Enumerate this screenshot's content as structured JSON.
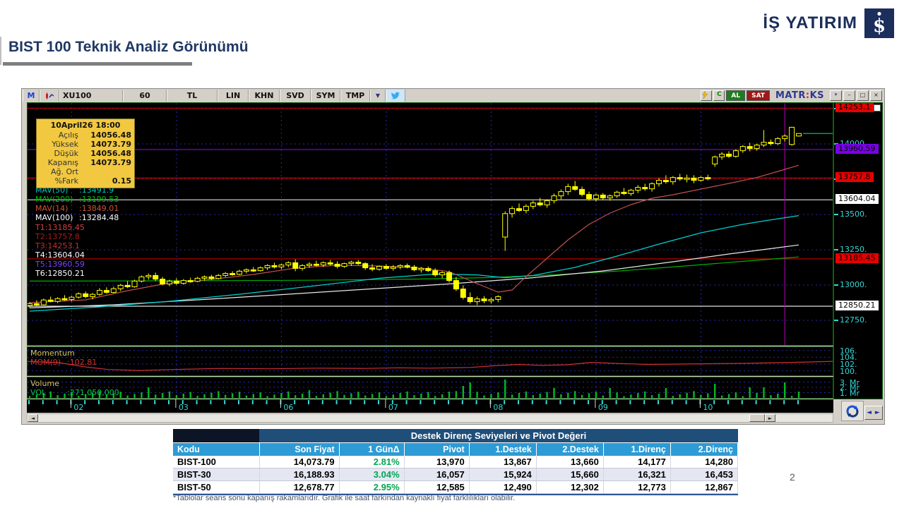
{
  "slide": {
    "title": "BIST 100 Teknik Analiz Görünümü",
    "page_number": "2",
    "footnote": "*Tablolar seans sonu kapanış rakamlarıdır. Grafik ile saat farkından kaynaklı fiyat farklılıkları olabilir.",
    "logo_text": "İŞ YATIRIM"
  },
  "terminal": {
    "toolbar": {
      "m_logo": "M",
      "items": [
        "XU100",
        "60",
        "TL",
        "LIN",
        "KHN",
        "SVD",
        "SYM",
        "TMP"
      ],
      "al": "AL",
      "sat": "SAT",
      "refresh": "C",
      "brand": {
        "m1": "MATR",
        "m2": ":",
        "m3": "KS"
      }
    },
    "window_buttons": {
      "dropdown": "▾",
      "minimize": "–",
      "maximize": "□",
      "close": "×"
    },
    "icons": {
      "left_arrow": "◄",
      "right_arrow": "►",
      "prev_next": "◄ ►"
    },
    "info_box": {
      "title": "10April26 18:00",
      "rows": [
        [
          "Açılış",
          "14056.48"
        ],
        [
          "Yüksek",
          "14073.79"
        ],
        [
          "Düşük",
          "14056.48"
        ],
        [
          "Kapanış",
          "14073.79"
        ],
        [
          "Ağ. Ort",
          ""
        ],
        [
          "%Fark",
          "0.15"
        ]
      ]
    },
    "mav_labels": [
      {
        "name": "MAV(50)",
        "value": ":13491.9",
        "color": "#00c8c8"
      },
      {
        "name": "MAV(200)",
        "value": ":13199.53",
        "color": "#00bb00"
      },
      {
        "name": "MAV(14)",
        "value": ":13849.01",
        "color": "#cc5533"
      },
      {
        "name": "MAV(100)",
        "value": ":13284.48",
        "color": "#ffffff"
      }
    ],
    "t_labels": [
      {
        "text": "T1:13185.45",
        "color": "#d04040"
      },
      {
        "text": "T2:13757.8",
        "color": "#a02020"
      },
      {
        "text": "T3:14253.1",
        "color": "#c03030"
      },
      {
        "text": "T4:13604.04",
        "color": "#ffffff"
      },
      {
        "text": "T5:13960.59",
        "color": "#8040ff"
      },
      {
        "text": "T6:12850.21",
        "color": "#ffffff"
      }
    ],
    "momentum": {
      "label": "Momentum",
      "line_label": "MOM(9)",
      "line_value": ":102.81",
      "color": "#d03030"
    },
    "volume": {
      "label": "Volume",
      "line_label": "VOL",
      "line_value": ":271,050,000",
      "color": "#00cc44"
    }
  },
  "chart_data": {
    "type": "candlestick",
    "symbol": "XU100",
    "timeframe_minutes": "60",
    "current_price": 14073.79,
    "marker_bar": 108,
    "y_ticks": [
      14250,
      14000,
      13750,
      13500,
      13250,
      13000,
      12750
    ],
    "months": [
      {
        "label": "02",
        "bar": 6
      },
      {
        "label": "03",
        "bar": 21
      },
      {
        "label": "06",
        "bar": 36
      },
      {
        "label": "07",
        "bar": 51
      },
      {
        "label": "08",
        "bar": 66
      },
      {
        "label": "09",
        "bar": 81
      },
      {
        "label": "10",
        "bar": 96
      }
    ],
    "levels": [
      {
        "label": "T3",
        "value": 14253.1,
        "color": "#b40000"
      },
      {
        "label": "T5",
        "value": 13960.59,
        "color": "#7a00e0"
      },
      {
        "label": "T2",
        "value": 13757.8,
        "color": "#d40000"
      },
      {
        "label": "T4",
        "value": 13604.04,
        "color": "#e0e0e0"
      },
      {
        "label": "T1",
        "value": 13185.45,
        "color": "#b40000"
      },
      {
        "label": "T6",
        "value": 12850.21,
        "color": "#e0e0e0"
      }
    ],
    "axis_badges": [
      {
        "text": "14253.1",
        "value": 14253.1,
        "bg": "#e80000"
      },
      {
        "text": "13960.59",
        "value": 13960.59,
        "bg": "#7a00e8"
      },
      {
        "text": "13757.8",
        "value": 13757.8,
        "bg": "#e80000"
      },
      {
        "text": "13604.04",
        "value": 13604.04,
        "bg": "#ffffff"
      },
      {
        "text": "13185.45",
        "value": 13185.45,
        "bg": "#e80000"
      },
      {
        "text": "12850.21",
        "value": 12850.21,
        "bg": "#ffffff"
      }
    ],
    "momentum_ticks": [
      {
        "v": 106,
        "label": "106."
      },
      {
        "v": 104,
        "label": "104."
      },
      {
        "v": 102,
        "label": "102."
      },
      {
        "v": 100,
        "label": "100."
      }
    ],
    "volume_ticks": [
      {
        "v": 3,
        "label": "3. Mr"
      },
      {
        "v": 2,
        "label": "2. Mr"
      },
      {
        "v": 1,
        "label": "1. Mr"
      }
    ],
    "momentum_series": [
      [
        0,
        102.8
      ],
      [
        0.04,
        102.4
      ],
      [
        0.07,
        101.2
      ],
      [
        0.1,
        100.4
      ],
      [
        0.14,
        100.1
      ],
      [
        0.18,
        100.4
      ],
      [
        0.24,
        100.7
      ],
      [
        0.3,
        100.6
      ],
      [
        0.36,
        100.8
      ],
      [
        0.42,
        100.7
      ],
      [
        0.46,
        100.9
      ],
      [
        0.5,
        100.8
      ],
      [
        0.55,
        101.0
      ],
      [
        0.58,
        101.5
      ],
      [
        0.61,
        101.9
      ],
      [
        0.64,
        101.6
      ],
      [
        0.67,
        101.8
      ],
      [
        0.7,
        102.5
      ],
      [
        0.73,
        102.2
      ],
      [
        0.77,
        101.9
      ],
      [
        0.81,
        102.0
      ],
      [
        0.85,
        102.1
      ],
      [
        0.89,
        102.2
      ],
      [
        0.93,
        102.4
      ],
      [
        0.97,
        102.6
      ],
      [
        1.0,
        102.81
      ]
    ],
    "mavs": [
      {
        "name": "MAV(200)",
        "color": "#00b000",
        "points": [
          [
            0,
            13028
          ],
          [
            20,
            13030
          ],
          [
            40,
            13034
          ],
          [
            55,
            13042
          ],
          [
            65,
            13052
          ],
          [
            75,
            13072
          ],
          [
            85,
            13102
          ],
          [
            95,
            13140
          ],
          [
            103,
            13172
          ],
          [
            110,
            13199
          ]
        ]
      },
      {
        "name": "MAV(100)",
        "color": "#e8e8e8",
        "points": [
          [
            0,
            12838
          ],
          [
            12,
            12860
          ],
          [
            24,
            12895
          ],
          [
            36,
            12932
          ],
          [
            48,
            12970
          ],
          [
            60,
            13008
          ],
          [
            72,
            13052
          ],
          [
            82,
            13100
          ],
          [
            92,
            13165
          ],
          [
            100,
            13220
          ],
          [
            106,
            13258
          ],
          [
            110,
            13284
          ]
        ]
      },
      {
        "name": "MAV(50)",
        "color": "#00d2d2",
        "points": [
          [
            0,
            12815
          ],
          [
            10,
            12845
          ],
          [
            20,
            12885
          ],
          [
            30,
            12935
          ],
          [
            40,
            12990
          ],
          [
            50,
            13048
          ],
          [
            58,
            13078
          ],
          [
            64,
            13072
          ],
          [
            68,
            13052
          ],
          [
            72,
            13068
          ],
          [
            78,
            13125
          ],
          [
            84,
            13205
          ],
          [
            90,
            13290
          ],
          [
            96,
            13370
          ],
          [
            102,
            13430
          ],
          [
            106,
            13462
          ],
          [
            110,
            13492
          ]
        ]
      },
      {
        "name": "MAV(14)",
        "color": "#c0504d",
        "points": [
          [
            0,
            12875
          ],
          [
            8,
            12895
          ],
          [
            14,
            12960
          ],
          [
            20,
            13015
          ],
          [
            26,
            13040
          ],
          [
            32,
            13075
          ],
          [
            38,
            13120
          ],
          [
            44,
            13140
          ],
          [
            50,
            13135
          ],
          [
            56,
            13120
          ],
          [
            60,
            13095
          ],
          [
            64,
            13010
          ],
          [
            67,
            12950
          ],
          [
            69,
            12965
          ],
          [
            71,
            13060
          ],
          [
            74,
            13190
          ],
          [
            77,
            13320
          ],
          [
            80,
            13430
          ],
          [
            83,
            13510
          ],
          [
            86,
            13570
          ],
          [
            89,
            13615
          ],
          [
            92,
            13640
          ],
          [
            95,
            13670
          ],
          [
            98,
            13700
          ],
          [
            101,
            13730
          ],
          [
            104,
            13762
          ],
          [
            107,
            13805
          ],
          [
            110,
            13849
          ]
        ]
      }
    ],
    "candles": [
      [
        12855,
        12880,
        12838,
        12868
      ],
      [
        12868,
        12892,
        12852,
        12860
      ],
      [
        12860,
        12904,
        12856,
        12894
      ],
      [
        12894,
        12918,
        12878,
        12884
      ],
      [
        12884,
        12914,
        12872,
        12904
      ],
      [
        12904,
        12928,
        12888,
        12898
      ],
      [
        12898,
        12924,
        12884,
        12914
      ],
      [
        12914,
        12948,
        12904,
        12938
      ],
      [
        12938,
        12954,
        12908,
        12918
      ],
      [
        12918,
        12944,
        12898,
        12934
      ],
      [
        12934,
        12978,
        12924,
        12962
      ],
      [
        12962,
        12984,
        12938,
        12948
      ],
      [
        12948,
        12988,
        12942,
        12974
      ],
      [
        12974,
        13008,
        12958,
        12998
      ],
      [
        12998,
        13028,
        12978,
        12988
      ],
      [
        12988,
        13038,
        12982,
        13028
      ],
      [
        13028,
        13068,
        13018,
        13058
      ],
      [
        13058,
        13082,
        13038,
        13068
      ],
      [
        13068,
        13088,
        13028,
        13042
      ],
      [
        13042,
        13058,
        12998,
        13008
      ],
      [
        13008,
        13038,
        12992,
        13028
      ],
      [
        13028,
        13048,
        13002,
        13012
      ],
      [
        13012,
        13042,
        13002,
        13032
      ],
      [
        13032,
        13052,
        13016,
        13026
      ],
      [
        13026,
        13058,
        13020,
        13048
      ],
      [
        13048,
        13068,
        13032,
        13058
      ],
      [
        13058,
        13072,
        13036,
        13046
      ],
      [
        13046,
        13078,
        13040,
        13068
      ],
      [
        13068,
        13092,
        13056,
        13082
      ],
      [
        13082,
        13098,
        13066,
        13076
      ],
      [
        13076,
        13108,
        13070,
        13098
      ],
      [
        13098,
        13118,
        13082,
        13108
      ],
      [
        13108,
        13128,
        13092,
        13102
      ],
      [
        13102,
        13132,
        13096,
        13122
      ],
      [
        13122,
        13148,
        13106,
        13138
      ],
      [
        13138,
        13158,
        13118,
        13128
      ],
      [
        13128,
        13152,
        13112,
        13142
      ],
      [
        13142,
        13168,
        13126,
        13158
      ],
      [
        13158,
        13182,
        13098,
        13118
      ],
      [
        13118,
        13148,
        13102,
        13138
      ],
      [
        13138,
        13162,
        13122,
        13148
      ],
      [
        13148,
        13172,
        13132,
        13142
      ],
      [
        13142,
        13168,
        13128,
        13158
      ],
      [
        13158,
        13178,
        13138,
        13148
      ],
      [
        13148,
        13168,
        13118,
        13132
      ],
      [
        13132,
        13158,
        13122,
        13152
      ],
      [
        13152,
        13172,
        13136,
        13162
      ],
      [
        13162,
        13178,
        13142,
        13152
      ],
      [
        13152,
        13162,
        13108,
        13122
      ],
      [
        13122,
        13148,
        13098,
        13112
      ],
      [
        13112,
        13138,
        13102,
        13132
      ],
      [
        13132,
        13148,
        13108,
        13118
      ],
      [
        13118,
        13142,
        13102,
        13128
      ],
      [
        13128,
        13148,
        13112,
        13138
      ],
      [
        13138,
        13152,
        13118,
        13128
      ],
      [
        13128,
        13142,
        13098,
        13108
      ],
      [
        13108,
        13128,
        13088,
        13118
      ],
      [
        13118,
        13132,
        13092,
        13102
      ],
      [
        13102,
        13118,
        13058,
        13072
      ],
      [
        13072,
        13098,
        13048,
        13088
      ],
      [
        13088,
        13102,
        13018,
        13032
      ],
      [
        13032,
        13058,
        12958,
        12972
      ],
      [
        12972,
        12998,
        12898,
        12912
      ],
      [
        12912,
        12948,
        12868,
        12882
      ],
      [
        12882,
        12918,
        12858,
        12902
      ],
      [
        12902,
        12922,
        12872,
        12888
      ],
      [
        12888,
        12912,
        12868,
        12898
      ],
      [
        12898,
        12928,
        12878,
        12918
      ],
      [
        13340,
        13522,
        13242,
        13506
      ],
      [
        13506,
        13558,
        13478,
        13542
      ],
      [
        13542,
        13578,
        13518,
        13528
      ],
      [
        13528,
        13572,
        13508,
        13558
      ],
      [
        13558,
        13598,
        13538,
        13582
      ],
      [
        13582,
        13618,
        13558,
        13568
      ],
      [
        13568,
        13608,
        13548,
        13598
      ],
      [
        13598,
        13648,
        13578,
        13632
      ],
      [
        13632,
        13678,
        13608,
        13662
      ],
      [
        13662,
        13718,
        13638,
        13698
      ],
      [
        13698,
        13738,
        13668,
        13678
      ],
      [
        13678,
        13698,
        13628,
        13642
      ],
      [
        13642,
        13662,
        13598,
        13612
      ],
      [
        13612,
        13648,
        13592,
        13638
      ],
      [
        13638,
        13652,
        13602,
        13618
      ],
      [
        13618,
        13642,
        13598,
        13632
      ],
      [
        13632,
        13668,
        13618,
        13658
      ],
      [
        13658,
        13688,
        13638,
        13648
      ],
      [
        13648,
        13682,
        13632,
        13672
      ],
      [
        13672,
        13708,
        13652,
        13692
      ],
      [
        13692,
        13718,
        13668,
        13682
      ],
      [
        13682,
        13728,
        13662,
        13718
      ],
      [
        13718,
        13758,
        13698,
        13742
      ],
      [
        13742,
        13778,
        13718,
        13732
      ],
      [
        13732,
        13772,
        13712,
        13762
      ],
      [
        13762,
        13788,
        13738,
        13752
      ],
      [
        13752,
        13782,
        13728,
        13758
      ],
      [
        13758,
        13778,
        13722,
        13742
      ],
      [
        13742,
        13772,
        13732,
        13762
      ],
      [
        13762,
        13782,
        13742,
        13755
      ],
      [
        13858,
        13918,
        13838,
        13908
      ],
      [
        13908,
        13942,
        13888,
        13928
      ],
      [
        13928,
        13948,
        13902,
        13912
      ],
      [
        13912,
        13962,
        13902,
        13952
      ],
      [
        13952,
        13992,
        13938,
        13982
      ],
      [
        13982,
        14008,
        13948,
        13968
      ],
      [
        13968,
        14002,
        13952,
        13992
      ],
      [
        13992,
        14098,
        13978,
        14012
      ],
      [
        14012,
        14032,
        13988,
        14002
      ],
      [
        14002,
        14048,
        13992,
        14038
      ],
      [
        14038,
        14068,
        14018,
        14056
      ],
      [
        13996,
        14122,
        13988,
        14118
      ],
      [
        14056,
        14074,
        14052,
        14074
      ]
    ]
  },
  "table": {
    "title": "Destek Direnç Seviyeleri ve Pivot Değeri",
    "headers": [
      "Kodu",
      "Son Fiyat",
      "1 GünΔ",
      "Pivot",
      "1.Destek",
      "2.Destek",
      "1.Direnç",
      "2.Direnç"
    ],
    "rows": [
      [
        "BIST-100",
        "14,073.79",
        "2.81%",
        "13,970",
        "13,867",
        "13,660",
        "14,177",
        "14,280"
      ],
      [
        "BIST-30",
        "16,188.93",
        "3.04%",
        "16,057",
        "15,924",
        "15,660",
        "16,321",
        "16,453"
      ],
      [
        "BIST-50",
        "12,678.77",
        "2.95%",
        "12,585",
        "12,490",
        "12,302",
        "12,773",
        "12,867"
      ]
    ]
  }
}
